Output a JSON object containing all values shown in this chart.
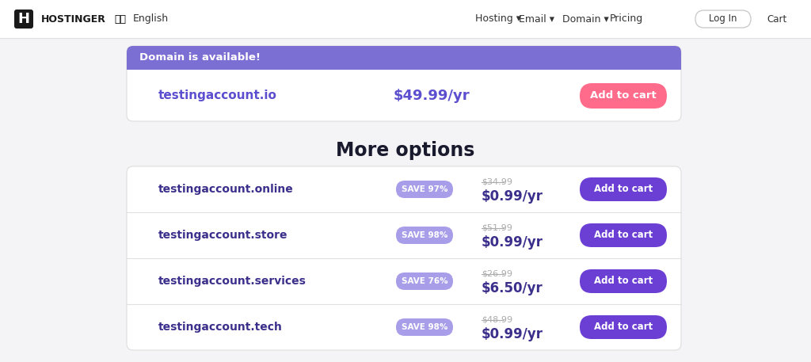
{
  "bg_color": "#f4f4f6",
  "nav_bg": "#ffffff",
  "brand_name": "HOSTINGER",
  "nav_items": [
    "Hosting",
    "Email",
    "Domain",
    "Pricing"
  ],
  "available_banner_color": "#7c6fd4",
  "available_text": "Domain is available!",
  "available_text_color": "#ffffff",
  "io_domain": "testingaccount.io",
  "io_price": "$49.99/yr",
  "io_price_color": "#5b4fcf",
  "io_btn_color": "#ff6b8a",
  "io_btn_text": "Add to cart",
  "io_btn_text_color": "#ffffff",
  "more_options_title": "More options",
  "more_options_title_color": "#1a1a2e",
  "options": [
    {
      "domain": "testingaccount.online",
      "save_label": "SAVE 97%",
      "original_price": "$34.99",
      "sale_price": "$0.99/yr"
    },
    {
      "domain": "testingaccount.store",
      "save_label": "SAVE 98%",
      "original_price": "$51.99",
      "sale_price": "$0.99/yr"
    },
    {
      "domain": "testingaccount.services",
      "save_label": "SAVE 76%",
      "original_price": "$26.99",
      "sale_price": "$6.50/yr"
    },
    {
      "domain": "testingaccount.tech",
      "save_label": "SAVE 98%",
      "original_price": "$48.99",
      "sale_price": "$0.99/yr"
    }
  ],
  "save_badge_color": "#a89de8",
  "save_badge_text_color": "#ffffff",
  "add_to_cart_btn_color": "#6c3fd4",
  "add_to_cart_btn_text_color": "#ffffff",
  "domain_text_color": "#3b2f8c",
  "original_price_color": "#aaaaaa",
  "sale_price_color": "#3b2f8c",
  "divider_color": "#e0e0e0"
}
